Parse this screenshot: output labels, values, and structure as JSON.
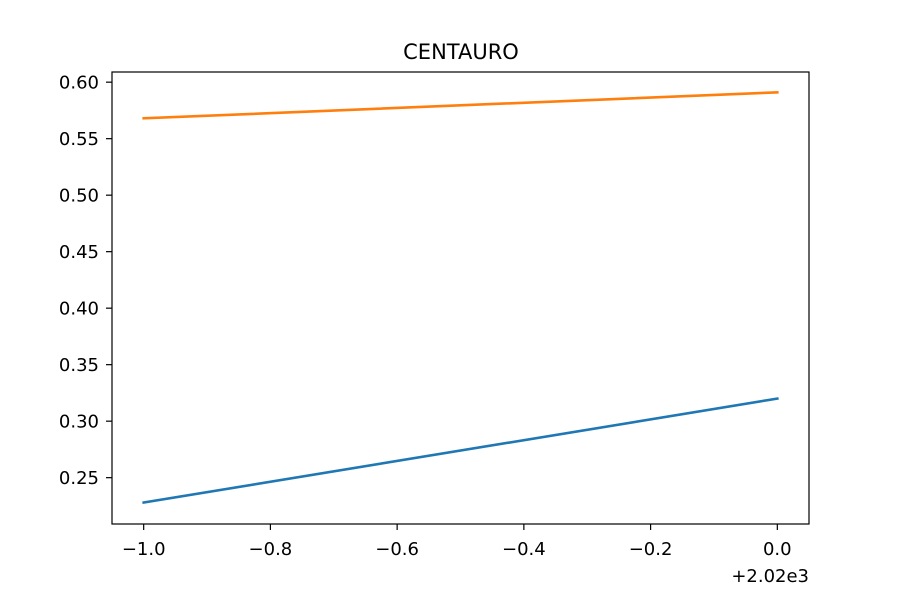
{
  "chart_data": {
    "type": "line",
    "title": "CENTAURO",
    "xlabel": "",
    "ylabel": "",
    "x_offset_label": "+2.02e3",
    "x": [
      -1.0,
      0.0
    ],
    "xlim": [
      -1.05,
      0.05
    ],
    "ylim": [
      0.209,
      0.609
    ],
    "xticks": [
      -1.0,
      -0.8,
      -0.6,
      -0.4,
      -0.2,
      0.0
    ],
    "xtick_labels": [
      "−1.0",
      "−0.8",
      "−0.6",
      "−0.4",
      "−0.2",
      "0.0"
    ],
    "yticks": [
      0.25,
      0.3,
      0.35,
      0.4,
      0.45,
      0.5,
      0.55,
      0.6
    ],
    "ytick_labels": [
      "0.25",
      "0.30",
      "0.35",
      "0.40",
      "0.45",
      "0.50",
      "0.55",
      "0.60"
    ],
    "grid": false,
    "series": [
      {
        "color": "#1f77b4",
        "values": [
          0.228,
          0.32
        ]
      },
      {
        "color": "#ff7f0e",
        "values": [
          0.568,
          0.591
        ]
      }
    ]
  }
}
